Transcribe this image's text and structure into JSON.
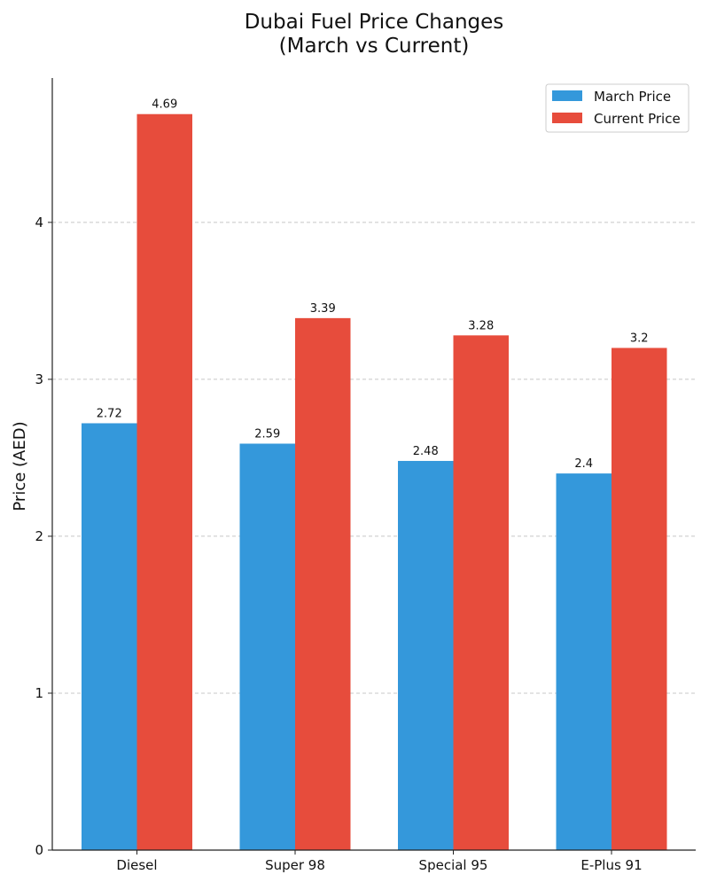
{
  "chart_data": {
    "type": "bar",
    "title": "Dubai Fuel Price Changes\n(March vs Current)",
    "title_lines": [
      "Dubai Fuel Price Changes",
      "(March vs Current)"
    ],
    "xlabel": "",
    "ylabel": "Price (AED)",
    "categories": [
      "Diesel",
      "Super 98",
      "Special 95",
      "E-Plus 91"
    ],
    "series": [
      {
        "name": "March Price",
        "color": "#3498db",
        "values": [
          2.72,
          2.59,
          2.48,
          2.4
        ],
        "labels": [
          "2.72",
          "2.59",
          "2.48",
          "2.4"
        ]
      },
      {
        "name": "Current Price",
        "color": "#e74c3c",
        "values": [
          4.69,
          3.39,
          3.28,
          3.2
        ],
        "labels": [
          "4.69",
          "3.39",
          "3.28",
          "3.2"
        ]
      }
    ],
    "ylim": [
      0,
      4.92
    ],
    "yticks": [
      0,
      1,
      2,
      3,
      4
    ],
    "ytick_labels": [
      "0",
      "1",
      "2",
      "3",
      "4"
    ],
    "grid": "horizontal dashed",
    "legend_position": "top-right"
  }
}
